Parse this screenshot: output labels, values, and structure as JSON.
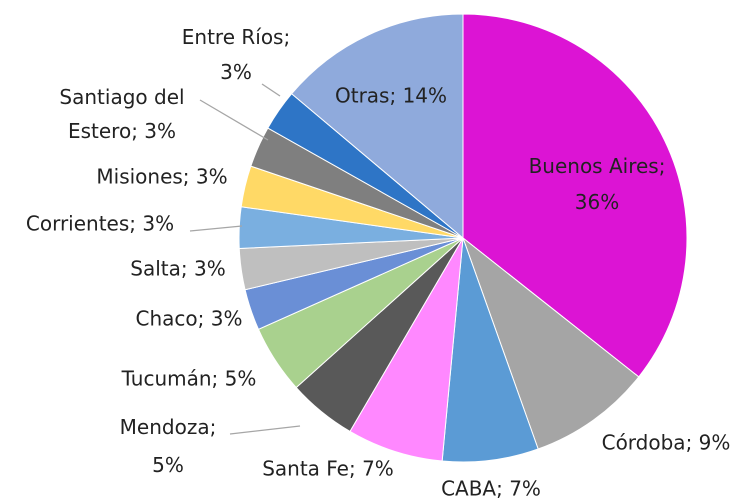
{
  "chart_data": {
    "type": "pie",
    "categories": [
      "Buenos Aires",
      "Córdoba",
      "CABA",
      "Santa Fe",
      "Mendoza",
      "Tucumán",
      "Chaco",
      "Salta",
      "Corrientes",
      "Misiones",
      "Santiago del Estero",
      "Entre Ríos",
      "Otras"
    ],
    "values": [
      36,
      9,
      7,
      7,
      5,
      5,
      3,
      3,
      3,
      3,
      3,
      3,
      14
    ],
    "value_labels": [
      "Buenos Aires; 36%",
      "Córdoba; 9%",
      "CABA; 7%",
      "Santa Fe; 7%",
      "Mendoza; 5%",
      "Tucumán; 5%",
      "Chaco; 3%",
      "Salta; 3%",
      "Corrientes; 3%",
      "Misiones; 3%",
      "Santiago del Estero; 3%",
      "Entre Ríos; 3%",
      "Otras; 14%"
    ],
    "colors": [
      "#dc14d4",
      "#a5a5a5",
      "#5b9bd5",
      "#ff88ff",
      "#595959",
      "#a9d18e",
      "#6a8fd6",
      "#bfbfbf",
      "#7aafe0",
      "#ffd966",
      "#7f7f7f",
      "#2e75c6",
      "#8faadc"
    ]
  }
}
